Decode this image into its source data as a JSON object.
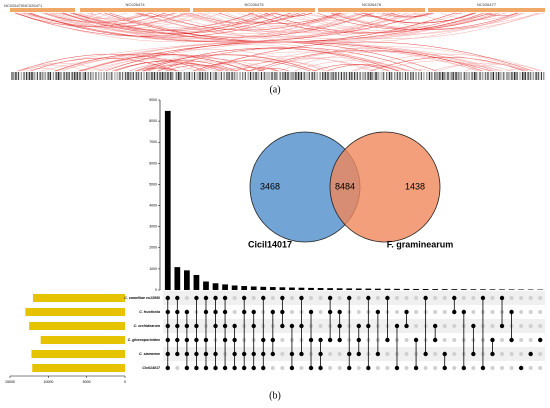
{
  "panel_a": {
    "chromosomes": [
      "NC026474",
      "NC026475",
      "NC026476",
      "NC026477"
    ],
    "left_label": "NC026470NC026471",
    "label": "(a)"
  },
  "panel_b": {
    "label": "(b)"
  },
  "chart_data": [
    {
      "type": "bar",
      "color": "#000000",
      "ylim": [
        0,
        9000
      ],
      "yticks": [
        0,
        1000,
        2000,
        3000,
        4000,
        5000,
        6000,
        7000,
        8000,
        9000
      ],
      "values": [
        8484,
        1083,
        931,
        712,
        402,
        318,
        265,
        214,
        187,
        166,
        151,
        139,
        128,
        117,
        108,
        99,
        92,
        86,
        80,
        75,
        70,
        66,
        62,
        58,
        55,
        52,
        49,
        46,
        43,
        41,
        39,
        37,
        35,
        33,
        31,
        29,
        27,
        25,
        23,
        21
      ],
      "sets": [
        [
          0,
          1,
          2,
          3,
          4,
          5
        ],
        [
          0,
          1,
          2,
          3,
          4
        ],
        [
          1,
          2,
          3,
          4,
          5
        ],
        [
          0,
          2,
          3,
          4,
          5
        ],
        [
          0,
          1,
          3,
          4,
          5
        ],
        [
          0,
          1,
          2,
          4,
          5
        ],
        [
          0,
          1,
          2,
          3,
          5
        ],
        [
          2,
          3,
          4,
          5
        ],
        [
          0,
          1,
          4,
          5
        ],
        [
          1,
          2,
          4,
          5
        ],
        [
          0,
          3,
          4,
          5
        ],
        [
          1,
          3,
          4
        ],
        [
          0,
          1,
          2
        ],
        [
          2,
          4,
          5
        ],
        [
          0,
          2,
          4
        ],
        [
          1,
          3,
          5
        ],
        [
          3,
          4,
          5
        ],
        [
          0,
          1,
          3
        ],
        [
          1,
          2,
          3
        ],
        [
          0,
          4,
          5
        ],
        [
          2,
          3,
          4
        ],
        [
          0,
          2,
          5
        ],
        [
          1,
          4
        ],
        [
          0,
          3
        ],
        [
          2,
          5
        ],
        [
          1,
          2
        ],
        [
          3,
          5
        ],
        [
          0,
          4
        ],
        [
          2,
          3
        ],
        [
          4,
          5
        ],
        [
          0,
          1
        ],
        [
          1,
          5
        ],
        [
          2,
          4
        ],
        [
          0,
          5
        ],
        [
          3,
          4
        ],
        [
          0,
          2
        ],
        [
          1,
          3
        ],
        [
          5
        ],
        [
          4
        ],
        [
          3
        ]
      ]
    },
    {
      "type": "hbar",
      "color": "#e6c300",
      "categories": [
        "C. camelliae cs13950",
        "C. fructicola",
        "C. orchidearum",
        "C. gloeosporioides",
        "C. siamense",
        "Cicil14017"
      ],
      "values": [
        12000,
        13000,
        12500,
        11000,
        12200,
        12100
      ],
      "xlim": [
        15000,
        0
      ],
      "xticks": [
        15000,
        10000,
        5000,
        0
      ]
    },
    {
      "type": "venn",
      "sets": [
        {
          "name": "Cicil14017",
          "color": "#6a9fd4"
        },
        {
          "name": "F. graminearum",
          "color": "#f0875a"
        }
      ],
      "values": [
        3468,
        8484,
        1438
      ]
    }
  ]
}
